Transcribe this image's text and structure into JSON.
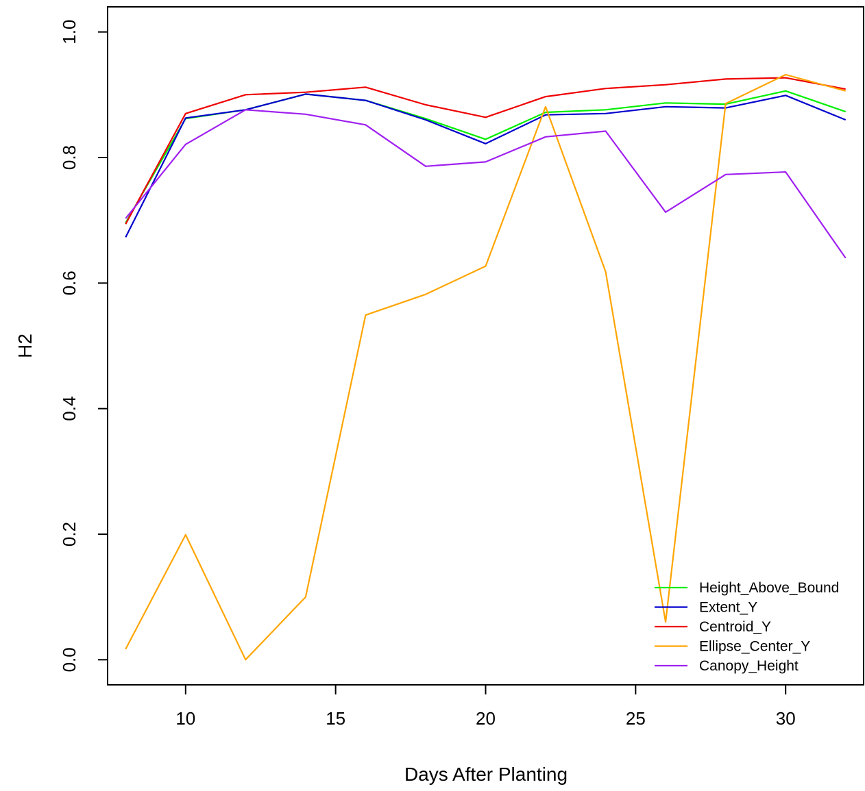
{
  "chart_data": {
    "type": "line",
    "title": "",
    "xlabel": "Days After Planting",
    "ylabel": "H2",
    "xlim": [
      7.4,
      32.6
    ],
    "ylim": [
      -0.04,
      1.04
    ],
    "x_ticks": [
      10,
      15,
      20,
      25,
      30
    ],
    "y_ticks": [
      0.0,
      0.2,
      0.4,
      0.6,
      0.8,
      1.0
    ],
    "x_tick_labels": [
      "10",
      "15",
      "20",
      "25",
      "30"
    ],
    "y_tick_labels": [
      "0.0",
      "0.2",
      "0.4",
      "0.6",
      "0.8",
      "1.0"
    ],
    "grid": false,
    "legend_position": "bottom-right",
    "x": [
      8,
      10,
      12,
      14,
      16,
      18,
      20,
      22,
      24,
      26,
      28,
      30,
      32
    ],
    "series": [
      {
        "name": "Height_Above_Bound",
        "color": "#00ee00",
        "values": [
          0.696,
          0.862,
          0.876,
          0.901,
          0.891,
          0.862,
          0.829,
          0.872,
          0.876,
          0.887,
          0.885,
          0.906,
          0.873
        ]
      },
      {
        "name": "Extent_Y",
        "color": "#0000cd",
        "values": [
          0.673,
          0.863,
          0.876,
          0.901,
          0.891,
          0.86,
          0.822,
          0.868,
          0.87,
          0.881,
          0.879,
          0.899,
          0.86
        ]
      },
      {
        "name": "Centroid_Y",
        "color": "#ee0000",
        "values": [
          0.694,
          0.87,
          0.9,
          0.904,
          0.912,
          0.884,
          0.864,
          0.897,
          0.91,
          0.916,
          0.925,
          0.927,
          0.909
        ]
      },
      {
        "name": "Ellipse_Center_Y",
        "color": "#ffa500",
        "values": [
          0.017,
          0.199,
          0.0,
          0.1,
          0.549,
          0.582,
          0.627,
          0.881,
          0.618,
          0.06,
          0.886,
          0.932,
          0.906
        ]
      },
      {
        "name": "Canopy_Height",
        "color": "#a020f0",
        "values": [
          0.703,
          0.821,
          0.876,
          0.869,
          0.852,
          0.786,
          0.793,
          0.833,
          0.842,
          0.713,
          0.773,
          0.777,
          0.64
        ]
      }
    ]
  }
}
